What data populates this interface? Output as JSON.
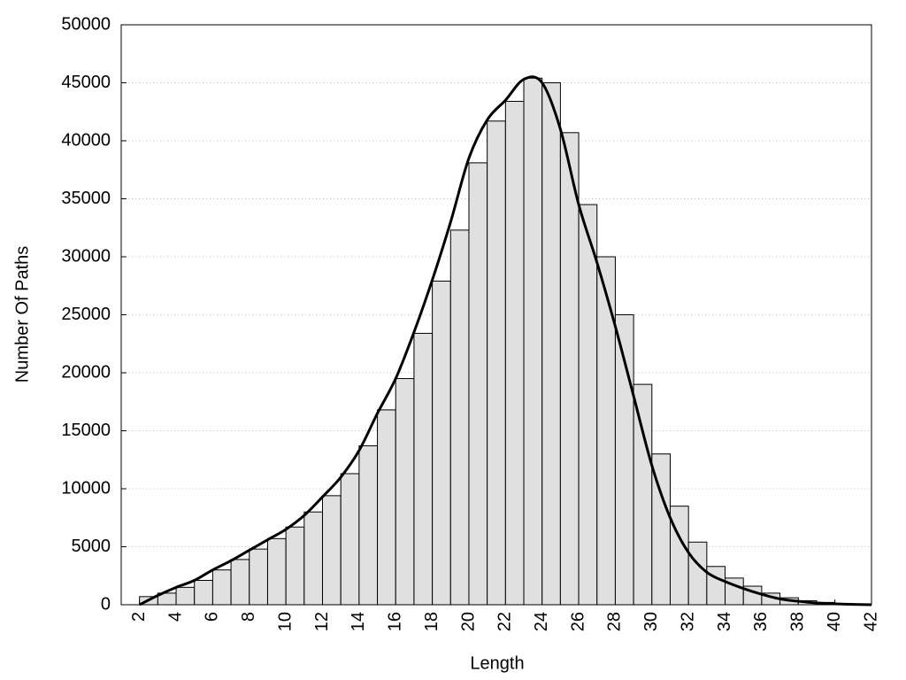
{
  "chart_data": {
    "type": "histogram",
    "xlabel": "Length",
    "ylabel": "Number Of Paths",
    "bins": [
      2,
      3,
      4,
      5,
      6,
      7,
      8,
      9,
      10,
      11,
      12,
      13,
      14,
      15,
      16,
      17,
      18,
      19,
      20,
      21,
      22,
      23,
      24,
      25,
      26,
      27,
      28,
      29,
      30,
      31,
      32,
      33,
      34,
      35,
      36,
      37,
      38,
      39,
      40,
      41,
      42
    ],
    "counts": [
      700,
      1000,
      1500,
      2100,
      3000,
      3900,
      4800,
      5700,
      6700,
      8000,
      9400,
      11300,
      13700,
      16800,
      19500,
      23400,
      27900,
      32300,
      38100,
      41700,
      43400,
      45400,
      45000,
      40700,
      34500,
      30000,
      25000,
      19000,
      13000,
      8500,
      5400,
      3300,
      2300,
      1600,
      1000,
      600,
      350,
      200,
      100,
      50
    ],
    "color": "#e0e0e0",
    "edgecolor": "#000000",
    "curve": {
      "color": "#000000",
      "x": [
        2,
        3,
        4,
        5,
        6,
        7,
        8,
        9,
        10,
        11,
        12,
        13,
        14,
        15,
        16,
        17,
        18,
        19,
        20,
        21,
        22,
        23,
        24,
        25,
        26,
        27,
        28,
        29,
        30,
        31,
        32,
        33,
        34,
        35,
        36,
        37,
        38,
        39,
        40,
        41,
        42
      ],
      "y": [
        0,
        800,
        1500,
        2100,
        3000,
        3800,
        4700,
        5600,
        6500,
        7700,
        9300,
        11000,
        13300,
        16500,
        19500,
        23500,
        28000,
        33000,
        38500,
        41800,
        43500,
        45300,
        45000,
        41000,
        34500,
        29500,
        24000,
        18000,
        12000,
        7500,
        4500,
        2800,
        2000,
        1400,
        900,
        500,
        300,
        150,
        80,
        30,
        0
      ]
    },
    "xlim": [
      1,
      42
    ],
    "ylim": [
      0,
      50000
    ],
    "xticks": [
      2,
      4,
      6,
      8,
      10,
      12,
      14,
      16,
      18,
      20,
      22,
      24,
      26,
      28,
      30,
      32,
      34,
      36,
      38,
      40,
      42
    ],
    "yticks": [
      0,
      5000,
      10000,
      15000,
      20000,
      25000,
      30000,
      35000,
      40000,
      45000,
      50000
    ],
    "grid": true
  }
}
